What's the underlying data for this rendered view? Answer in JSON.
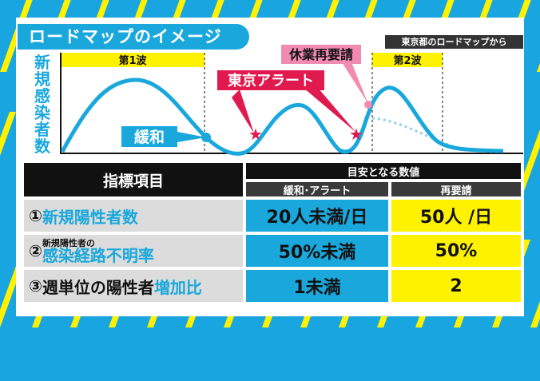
{
  "title": "ロードマップのイメージ",
  "source": "東京都のロードマップから",
  "colors": {
    "accent": "#1aa8dc",
    "yellow": "#fff200",
    "alert": "#e0194f",
    "pink": "#f38bb0"
  },
  "chart": {
    "y_label": "新規感染者数",
    "wave1": "第1波",
    "wave2": "第2波",
    "relax_label": "緩和",
    "alert_label": "東京アラート",
    "rerequest_label": "休業再要請"
  },
  "table": {
    "header_left": "指標項目",
    "header_right": "目安となる数値",
    "col_relax": "緩和･アラート",
    "col_rerequest": "再要請",
    "rows": [
      {
        "num": "①",
        "pre": "",
        "main": "新規陽性者数",
        "main_blue": "",
        "relax": "20人未満/日",
        "rerequest": "50人 /日"
      },
      {
        "num": "②",
        "pre": "新規陽性者の",
        "main": "感染経路不明率",
        "main_blue": "",
        "relax": "50%未満",
        "rerequest": "50%"
      },
      {
        "num": "③",
        "pre": "",
        "main": "週単位の陽性者",
        "main_blue": "増加比",
        "relax": "1未満",
        "rerequest": "2"
      }
    ]
  }
}
